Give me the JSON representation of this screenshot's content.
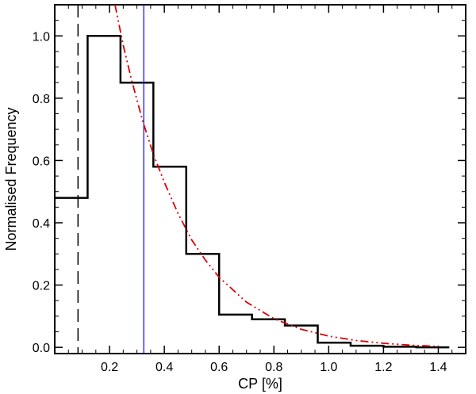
{
  "chart_data": {
    "type": "histogram",
    "xlabel": "CP [%]",
    "ylabel": "Normalised Frequency",
    "xlim": [
      0.0,
      1.5
    ],
    "ylim": [
      -0.02,
      1.1
    ],
    "xticks": [
      "0.2",
      "0.4",
      "0.6",
      "0.8",
      "1.0",
      "1.2",
      "1.4"
    ],
    "yticks": [
      "0.0",
      "0.2",
      "0.4",
      "0.6",
      "0.8",
      "1.0"
    ],
    "histogram": {
      "bin_edges": [
        0.0,
        0.12,
        0.24,
        0.36,
        0.48,
        0.6,
        0.72,
        0.84,
        0.96,
        1.08,
        1.2,
        1.32,
        1.44
      ],
      "values": [
        0.48,
        1.0,
        0.85,
        0.58,
        0.3,
        0.105,
        0.09,
        0.07,
        0.015,
        0.005,
        0.002,
        0.0
      ],
      "color": "#000000"
    },
    "fit_curve": {
      "style": "dash-dot-dot",
      "color": "#dd0000",
      "x": [
        0.22,
        0.25,
        0.28,
        0.32,
        0.36,
        0.4,
        0.45,
        0.5,
        0.55,
        0.6,
        0.7,
        0.8,
        0.9,
        1.0,
        1.1,
        1.2,
        1.3,
        1.4
      ],
      "y": [
        1.1,
        0.97,
        0.86,
        0.73,
        0.62,
        0.53,
        0.43,
        0.345,
        0.28,
        0.225,
        0.145,
        0.092,
        0.058,
        0.036,
        0.022,
        0.013,
        0.007,
        0.003
      ]
    },
    "vertical_lines": [
      {
        "x": 0.085,
        "style": "dashed",
        "color": "#000000"
      },
      {
        "x": 0.325,
        "style": "solid",
        "color": "#1a1aff"
      }
    ]
  }
}
